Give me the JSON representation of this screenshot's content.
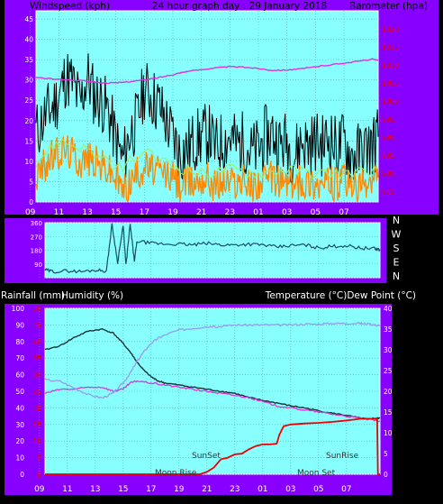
{
  "colors": {
    "frame": "#8800ff",
    "plot": "#88ffff",
    "grid": "#55aaaa",
    "wind_gust": "#000000",
    "wind_avg": "#ff8800",
    "wind_light": "#99ee66",
    "barometer": "#dd33dd",
    "direction": "#1a4a6a",
    "temperature": "#113333",
    "dewpoint": "#dd33dd",
    "humidity": "#9999ee",
    "rainfall": "#ee0000",
    "axis_text": "#ffffff",
    "red_text": "#ee0000",
    "sun_moon_text": "#333333"
  },
  "panel_top": {
    "left_title": "Windspeed (kph)",
    "center_title": "24 hour graph day : 29 January 2018",
    "right_title": "Barometer (hpa)"
  },
  "panel_dir": {
    "compass": [
      "N",
      "W",
      "S",
      "E",
      "N"
    ]
  },
  "panel_bottom": {
    "left_title_1": "Rainfall (mm)",
    "left_title_2": "Humidity (%)",
    "right_title": "Temperature (°C)Dew Point (°C)",
    "sunset_label": "SunSet",
    "sunrise_label": "SunRise",
    "moonrise_label": "Moon Rise",
    "moonset_label": "Moon Set"
  },
  "chart_data": [
    {
      "type": "line",
      "name_id": "wind-barometer",
      "title": "24 hour graph day : 29 January 2018",
      "xlabel": "",
      "ylabel": "Windspeed (kph)",
      "y2label": "Barometer (hpa)",
      "x_ticks": [
        "11",
        "13",
        "15",
        "17",
        "19",
        "21",
        "23",
        "01",
        "03",
        "05",
        "07",
        "09"
      ],
      "x_range_hours": [
        9.4,
        33.4
      ],
      "y_ticks": [
        0,
        5,
        10,
        15,
        20,
        25,
        30,
        35,
        40,
        45
      ],
      "ylim": [
        0,
        47
      ],
      "y2_ticks": [
        975,
        980,
        985,
        990,
        995,
        1000,
        1005,
        1010,
        1015,
        1020
      ],
      "y2lim": [
        972,
        1025
      ],
      "series": [
        {
          "role": "gust",
          "x": [
            9.4,
            10,
            10.5,
            11,
            11.5,
            12,
            12.5,
            13,
            13.5,
            14,
            14.5,
            15,
            15.5,
            16,
            16.5,
            17,
            17.5,
            18,
            18.5,
            19,
            19.5,
            20,
            20.5,
            21,
            21.5,
            22,
            22.5,
            23,
            23.5,
            24,
            24.5,
            25,
            25.5,
            26,
            26.5,
            27,
            27.5,
            28,
            28.5,
            29,
            29.5,
            30,
            30.5,
            31,
            31.5,
            32,
            32.5,
            33,
            33.4
          ],
          "values": [
            17,
            21,
            23,
            26,
            31,
            29,
            24,
            31,
            26,
            25,
            22,
            15,
            10,
            17,
            20,
            28,
            26,
            24,
            20,
            16,
            12,
            13,
            15,
            16,
            17,
            13,
            15,
            16,
            14,
            15,
            12,
            13,
            16,
            17,
            14,
            15,
            11,
            15,
            14,
            15,
            14,
            16,
            13,
            15,
            11,
            12,
            13,
            14,
            16
          ]
        },
        {
          "role": "average",
          "x": [
            9.4,
            10,
            10.5,
            11,
            11.5,
            12,
            12.5,
            13,
            13.5,
            14,
            14.5,
            15,
            15.5,
            16,
            16.5,
            17,
            17.5,
            18,
            18.5,
            19,
            19.5,
            20,
            20.5,
            21,
            21.5,
            22,
            22.5,
            23,
            23.5,
            24,
            24.5,
            25,
            25.5,
            26,
            26.5,
            27,
            27.5,
            28,
            28.5,
            29,
            29.5,
            30,
            30.5,
            31,
            31.5,
            32,
            32.5,
            33,
            33.4
          ],
          "values": [
            6,
            9,
            11,
            12,
            13,
            12,
            10,
            11,
            10,
            9,
            8,
            6,
            3,
            5,
            7,
            9,
            8,
            7,
            7,
            6,
            4,
            5,
            5,
            6,
            6,
            4,
            5,
            5,
            5,
            5,
            4,
            5,
            5,
            6,
            5,
            5,
            4,
            5,
            5,
            5,
            4,
            5,
            4,
            5,
            4,
            3,
            4,
            5,
            6
          ]
        },
        {
          "role": "light",
          "x": [
            9.4,
            11,
            13,
            15,
            17,
            19,
            21,
            23,
            25,
            27,
            29,
            31,
            33.4
          ],
          "values": [
            10,
            15,
            13,
            8,
            12,
            9,
            7,
            8,
            7,
            8,
            7,
            7,
            8
          ]
        },
        {
          "role": "barometer",
          "axis": "y2",
          "x": [
            9.4,
            11,
            13,
            14,
            15,
            16,
            17,
            18,
            19,
            19.5,
            20,
            21,
            22,
            23,
            24,
            25,
            26,
            27,
            28,
            29,
            30,
            31,
            32,
            33,
            33.4
          ],
          "values": [
            1006.5,
            1006,
            1005.5,
            1005,
            1005,
            1005.4,
            1005.8,
            1006.5,
            1007.3,
            1007.8,
            1008.2,
            1008.7,
            1009.2,
            1009.5,
            1009.4,
            1009,
            1008.5,
            1008.6,
            1008.9,
            1009.5,
            1010,
            1010.5,
            1011,
            1011.6,
            1011.2
          ]
        }
      ]
    },
    {
      "type": "line",
      "name_id": "wind-direction",
      "x_range_hours": [
        9.4,
        33.4
      ],
      "y_ticks": [
        0,
        90,
        180,
        270,
        360
      ],
      "ylim": [
        0,
        360
      ],
      "series": [
        {
          "role": "direction",
          "x": [
            9.4,
            10,
            11,
            12,
            13,
            13.8,
            14.2,
            14.6,
            15,
            15.2,
            15.5,
            15.8,
            16,
            17,
            18,
            19,
            20,
            21,
            22,
            23,
            24,
            25,
            26,
            27,
            28,
            29,
            30,
            31,
            32,
            33,
            33.4
          ],
          "values": [
            50,
            40,
            45,
            40,
            50,
            45,
            350,
            100,
            340,
            80,
            350,
            110,
            240,
            225,
            220,
            220,
            215,
            225,
            215,
            215,
            220,
            215,
            200,
            210,
            215,
            195,
            205,
            210,
            195,
            190,
            185
          ]
        }
      ]
    },
    {
      "type": "line",
      "name_id": "temp-humidity-rain",
      "xlabel": "",
      "ylabel": "Humidity (%)",
      "y2label": "Temperature (°C)Dew Point (°C)",
      "x_ticks": [
        "11",
        "13",
        "15",
        "17",
        "19",
        "21",
        "23",
        "01",
        "03",
        "05",
        "07",
        "09"
      ],
      "x_range_hours": [
        9.4,
        33.4
      ],
      "y_ticks": [
        0,
        10,
        20,
        30,
        40,
        50,
        60,
        70,
        80,
        90,
        100
      ],
      "ylim": [
        0,
        100
      ],
      "y_red_ticks": [
        0,
        5,
        10,
        15,
        20,
        25,
        30,
        35,
        40,
        45,
        50
      ],
      "y2_ticks": [
        0,
        5,
        10,
        15,
        20,
        25,
        30,
        35,
        40
      ],
      "y2lim": [
        0,
        40
      ],
      "series": [
        {
          "role": "temperature",
          "axis": "y2",
          "x": [
            9.4,
            10.5,
            11.5,
            12.5,
            13.5,
            14.3,
            15,
            15.5,
            16,
            16.5,
            17,
            17.5,
            18,
            19,
            20,
            21,
            22,
            23,
            24,
            25,
            26,
            27,
            28,
            29,
            30,
            31,
            32,
            32.5,
            33,
            33.4
          ],
          "values": [
            30,
            31,
            33,
            34.5,
            35,
            34,
            31.5,
            29.5,
            27,
            25,
            23.5,
            22.5,
            22,
            21.5,
            21,
            20.5,
            20,
            19.5,
            18.5,
            17.8,
            17.2,
            16.5,
            16,
            15.3,
            14.7,
            14.2,
            13.5,
            13.3,
            13.5,
            13.5
          ]
        },
        {
          "role": "dewpoint",
          "axis": "y2",
          "x": [
            9.4,
            10.5,
            11.5,
            12.5,
            13.5,
            14.3,
            15,
            15.5,
            16,
            17,
            18,
            19,
            20,
            21,
            22,
            23,
            24,
            25,
            26,
            27,
            28,
            29,
            30,
            31,
            32,
            33,
            33.4
          ],
          "values": [
            19.5,
            20.5,
            20.5,
            21,
            21,
            20,
            20.5,
            22,
            22.5,
            22,
            21.5,
            21,
            20.5,
            20,
            19.5,
            19,
            18.5,
            17.5,
            16.5,
            16,
            15.5,
            15,
            14.5,
            14,
            13.5,
            13,
            12.8
          ]
        },
        {
          "role": "humidity",
          "x": [
            9.4,
            10.5,
            11.5,
            12.5,
            13.5,
            14.3,
            15,
            15.5,
            16,
            16.5,
            17,
            17.5,
            18,
            19,
            20,
            21,
            22,
            23,
            24,
            25,
            26,
            27,
            28,
            29,
            30,
            31,
            32,
            32.5,
            33,
            33.4
          ],
          "values": [
            57,
            56,
            52,
            48,
            46,
            49,
            55,
            61,
            68,
            74,
            79,
            82,
            84,
            87,
            88,
            89,
            89,
            90,
            90,
            90,
            90,
            90,
            90.5,
            90.5,
            91,
            91,
            91,
            90.5,
            90,
            89.5
          ]
        },
        {
          "role": "rainfall",
          "x": [
            9.4,
            19.5,
            20.5,
            21,
            21.5,
            22,
            22.5,
            23,
            23.5,
            24,
            24.5,
            25,
            25.5,
            26,
            26.2,
            26.5,
            27,
            28,
            29,
            30,
            31,
            32,
            33,
            33.2,
            33.25,
            33.4
          ],
          "values": [
            0,
            0,
            0,
            0.7,
            2,
            4.5,
            5,
            6,
            6.2,
            7.5,
            8.5,
            9,
            9,
            9.2,
            12,
            14.5,
            15,
            15.3,
            15.5,
            15.8,
            16.2,
            16.7,
            16.7,
            16.7,
            0,
            0
          ]
        }
      ]
    }
  ]
}
